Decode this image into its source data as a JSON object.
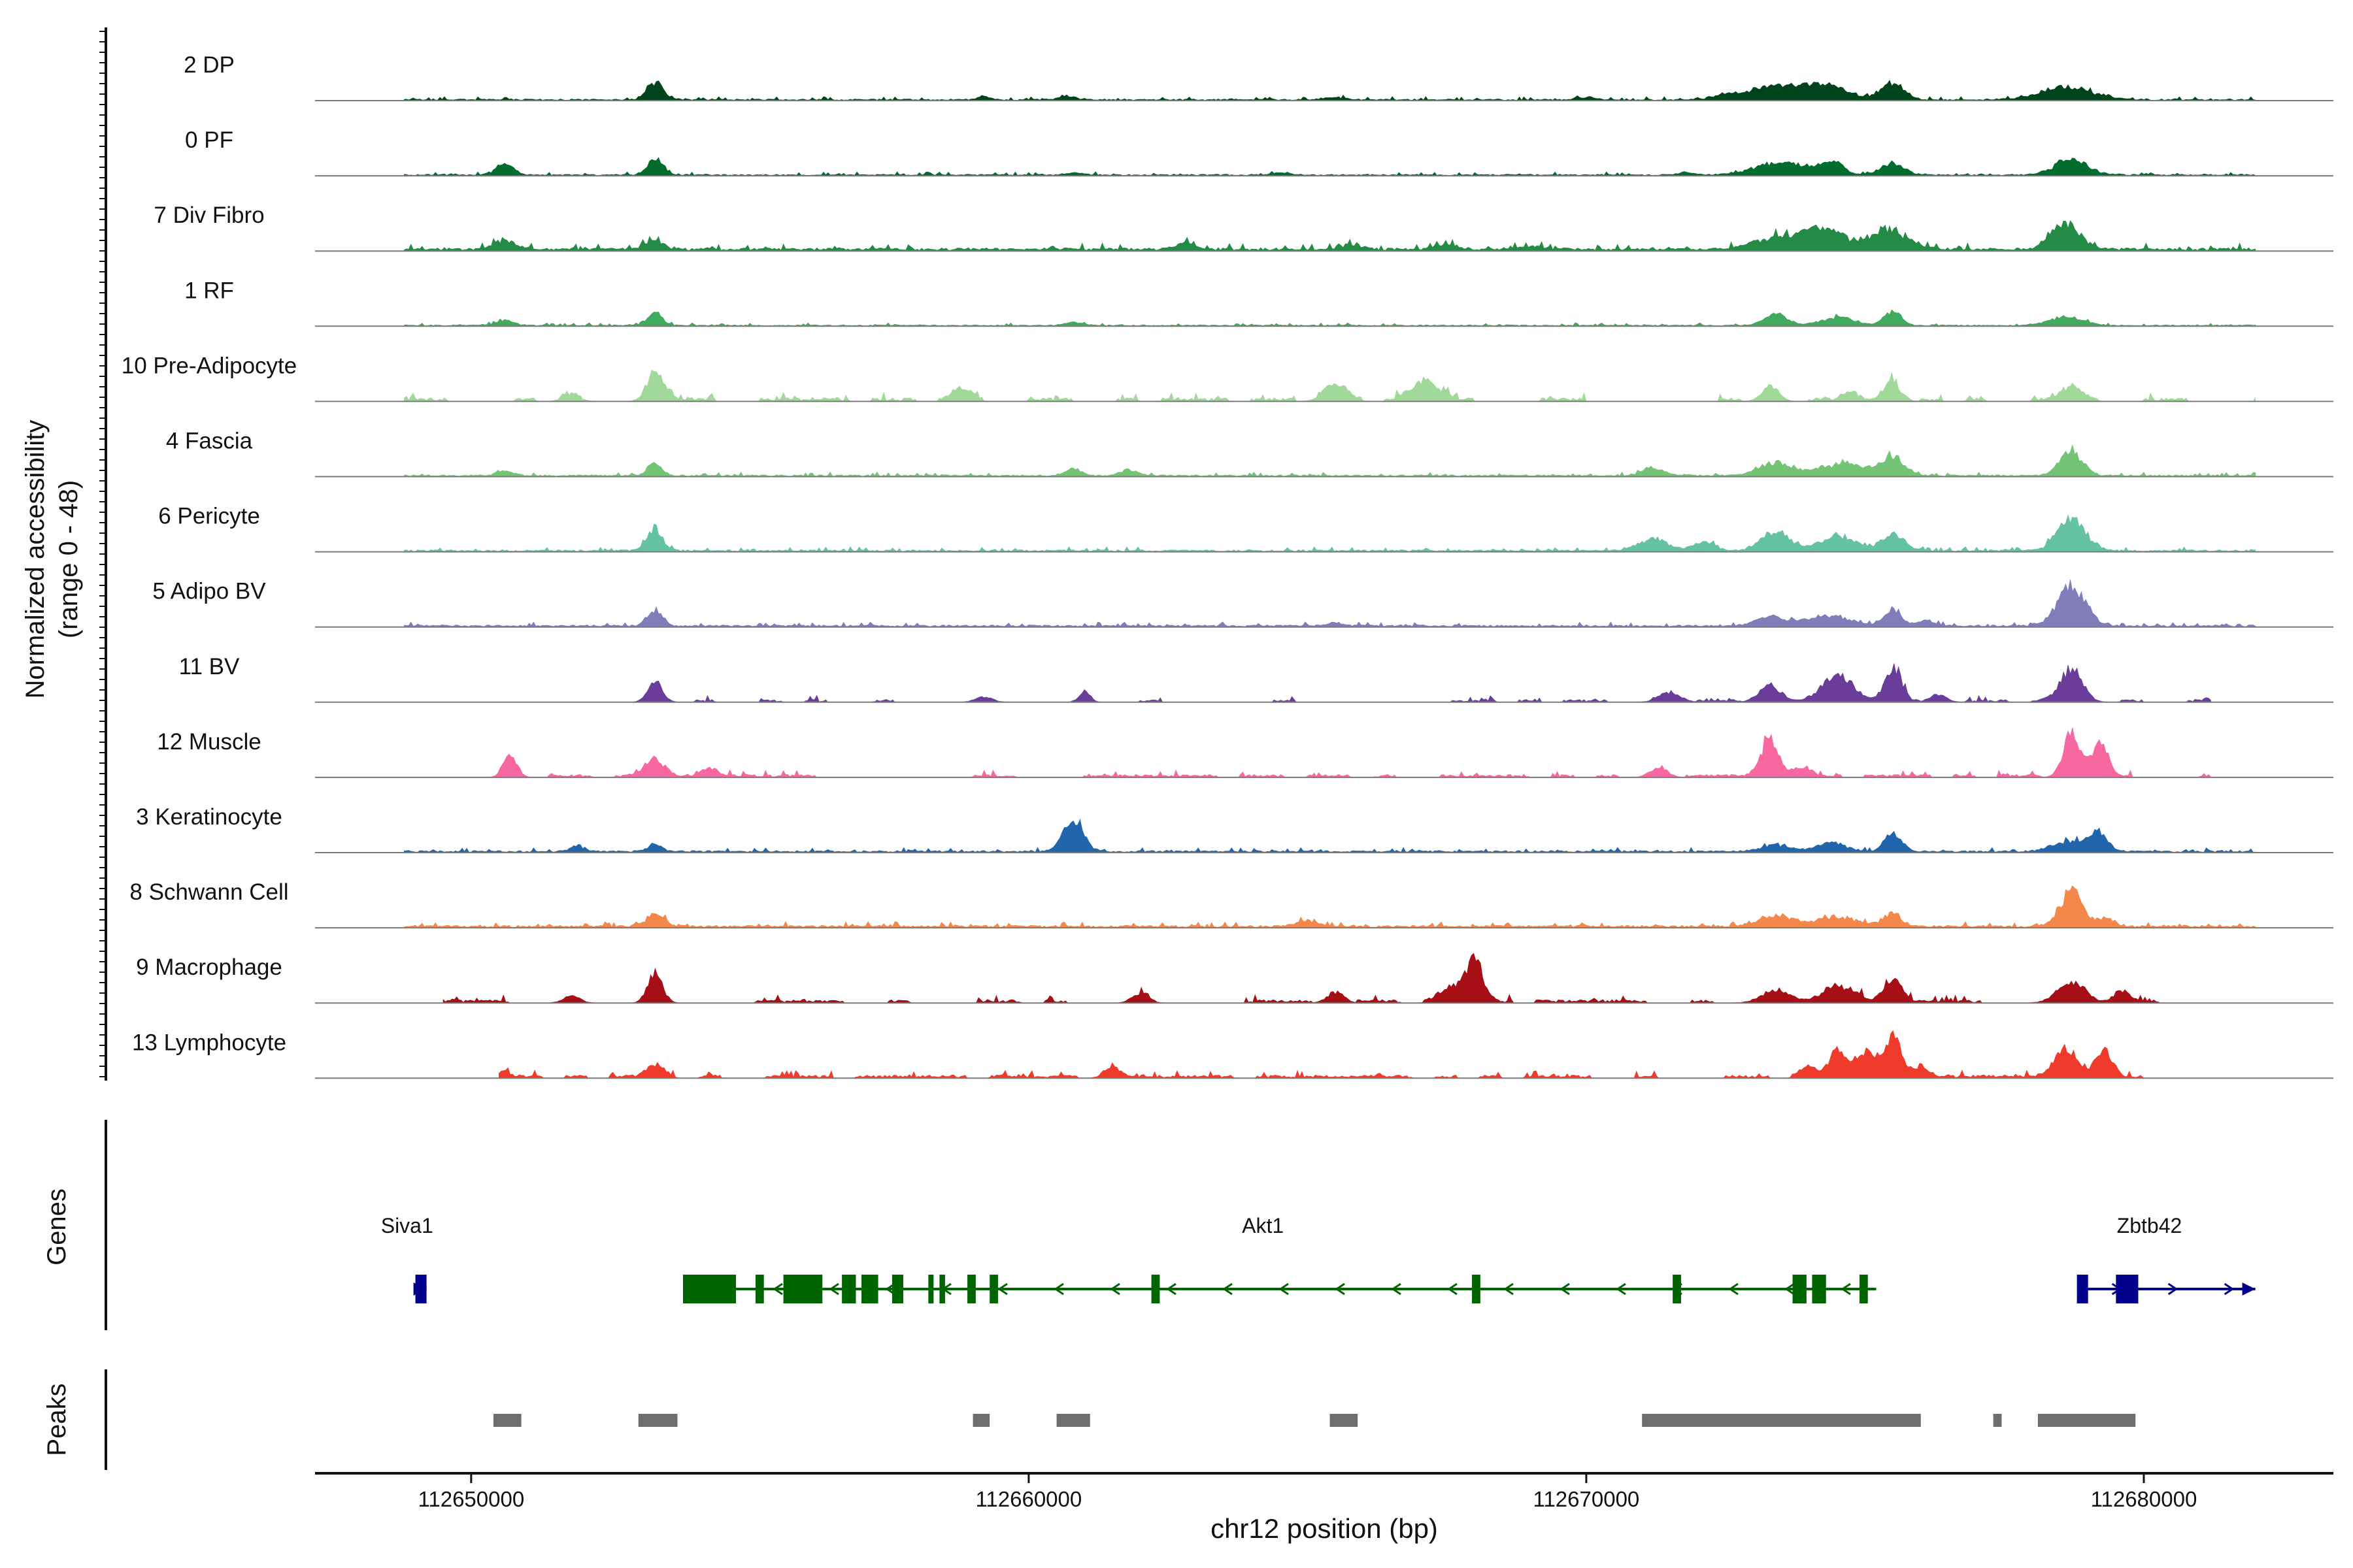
{
  "chart_data": {
    "type": "area",
    "title": "",
    "ylabel_line1": "Normalized accessibility",
    "ylabel_line2": "(range 0 - 48)",
    "ylim": [
      0,
      48
    ],
    "xlabel": "chr12 position (bp)",
    "xlim": [
      112647200,
      112683400
    ],
    "data_start": 112648800,
    "data_end": 112682000,
    "xticks": [
      112650000,
      112660000,
      112670000,
      112680000
    ],
    "xtick_labels": [
      "112650000",
      "112660000",
      "112670000",
      "112680000"
    ],
    "tracks": [
      {
        "name": "2 DP",
        "color": "#00441b",
        "noise": 0.7,
        "peaks": [
          [
            112653300,
            16,
            150
          ],
          [
            112673400,
            12,
            500
          ],
          [
            112674300,
            12,
            400
          ],
          [
            112675500,
            15,
            200
          ],
          [
            112678600,
            12,
            450
          ],
          [
            112659200,
            3,
            120
          ],
          [
            112660700,
            3,
            150
          ],
          [
            112670000,
            2.5,
            150
          ],
          [
            112672500,
            3,
            200
          ],
          [
            112665500,
            2,
            200
          ]
        ]
      },
      {
        "name": "0 PF",
        "color": "#006d2c",
        "noise": 0.7,
        "peaks": [
          [
            112650600,
            11,
            150
          ],
          [
            112653300,
            16,
            130
          ],
          [
            112673500,
            11,
            450
          ],
          [
            112674400,
            12,
            200
          ],
          [
            112675500,
            11,
            200
          ],
          [
            112678700,
            14,
            300
          ],
          [
            112660800,
            2,
            150
          ],
          [
            112664500,
            2,
            150
          ],
          [
            112671800,
            2,
            150
          ]
        ]
      },
      {
        "name": "7 Div Fibro",
        "color": "#238b45",
        "noise": 1.4,
        "peaks": [
          [
            112650600,
            8,
            200
          ],
          [
            112653300,
            9,
            150
          ],
          [
            112673500,
            12,
            450
          ],
          [
            112674300,
            18,
            300
          ],
          [
            112675400,
            18,
            350
          ],
          [
            112678600,
            24,
            250
          ],
          [
            112662800,
            6,
            150
          ],
          [
            112665800,
            5,
            150
          ],
          [
            112667500,
            4,
            200
          ],
          [
            112669000,
            3,
            200
          ]
        ]
      },
      {
        "name": "1 RF",
        "color": "#41ab5d",
        "noise": 0.6,
        "peaks": [
          [
            112650600,
            5,
            150
          ],
          [
            112653300,
            14,
            120
          ],
          [
            112673400,
            10,
            200
          ],
          [
            112674500,
            7,
            300
          ],
          [
            112675500,
            13,
            150
          ],
          [
            112678600,
            8,
            300
          ],
          [
            112660800,
            3,
            150
          ]
        ]
      },
      {
        "name": "10 Pre-Adipocyte",
        "color": "#a1d99b",
        "noise": 1.6,
        "sparse": 0.55,
        "peaks": [
          [
            112653300,
            26,
            150
          ],
          [
            112658800,
            12,
            150
          ],
          [
            112665500,
            15,
            200
          ],
          [
            112667100,
            17,
            250
          ],
          [
            112673300,
            14,
            150
          ],
          [
            112675500,
            16,
            150
          ],
          [
            112678700,
            12,
            200
          ],
          [
            112674700,
            9,
            150
          ],
          [
            112651800,
            6,
            150
          ]
        ]
      },
      {
        "name": "4 Fascia",
        "color": "#74c476",
        "noise": 0.8,
        "peaks": [
          [
            112653300,
            12,
            120
          ],
          [
            112673400,
            12,
            300
          ],
          [
            112674600,
            11,
            400
          ],
          [
            112675500,
            17,
            200
          ],
          [
            112678700,
            22,
            200
          ],
          [
            112660800,
            6,
            150
          ],
          [
            112661800,
            5,
            150
          ],
          [
            112671200,
            7,
            200
          ],
          [
            112650600,
            4,
            150
          ]
        ]
      },
      {
        "name": "6 Pericyte",
        "color": "#66c2a4",
        "noise": 0.9,
        "peaks": [
          [
            112653300,
            20,
            140
          ],
          [
            112673400,
            18,
            250
          ],
          [
            112674500,
            14,
            300
          ],
          [
            112675500,
            15,
            200
          ],
          [
            112678700,
            28,
            250
          ],
          [
            112671200,
            11,
            250
          ],
          [
            112672100,
            8,
            200
          ]
        ]
      },
      {
        "name": "5 Adipo BV",
        "color": "#807dba",
        "noise": 0.9,
        "peaks": [
          [
            112653300,
            15,
            130
          ],
          [
            112673300,
            8,
            250
          ],
          [
            112674300,
            10,
            400
          ],
          [
            112675500,
            16,
            150
          ],
          [
            112678700,
            36,
            250
          ],
          [
            112676100,
            5,
            150
          ],
          [
            112665500,
            3,
            150
          ]
        ]
      },
      {
        "name": "11 BV",
        "color": "#6a3d9a",
        "noise": 1.2,
        "sparse": 0.6,
        "x0": 112652000,
        "x1": 112681200,
        "peaks": [
          [
            112653300,
            20,
            130
          ],
          [
            112673300,
            15,
            200
          ],
          [
            112674500,
            22,
            300
          ],
          [
            112675500,
            32,
            150
          ],
          [
            112678700,
            30,
            200
          ],
          [
            112661000,
            10,
            100
          ],
          [
            112659200,
            5,
            150
          ],
          [
            112671500,
            8,
            200
          ],
          [
            112676300,
            7,
            150
          ]
        ]
      },
      {
        "name": "12 Muscle",
        "color": "#f768a1",
        "noise": 1.3,
        "sparse": 0.4,
        "x0": 112650200,
        "x1": 112681200,
        "peaks": [
          [
            112650700,
            22,
            120
          ],
          [
            112653300,
            15,
            200
          ],
          [
            112673300,
            35,
            150
          ],
          [
            112673900,
            10,
            150
          ],
          [
            112678700,
            40,
            150
          ],
          [
            112679200,
            28,
            150
          ],
          [
            112654300,
            8,
            150
          ],
          [
            112671300,
            10,
            150
          ]
        ]
      },
      {
        "name": "3 Keratinocyte",
        "color": "#2166ac",
        "noise": 0.9,
        "peaks": [
          [
            112660800,
            30,
            180
          ],
          [
            112653300,
            8,
            120
          ],
          [
            112651900,
            5,
            120
          ],
          [
            112673400,
            6,
            250
          ],
          [
            112674400,
            8,
            250
          ],
          [
            112675500,
            16,
            150
          ],
          [
            112678700,
            10,
            300
          ],
          [
            112679200,
            16,
            150
          ]
        ]
      },
      {
        "name": "8 Schwann Cell",
        "color": "#f4874a",
        "noise": 1.1,
        "peaks": [
          [
            112653300,
            12,
            150
          ],
          [
            112673400,
            10,
            300
          ],
          [
            112674500,
            8,
            400
          ],
          [
            112675500,
            12,
            150
          ],
          [
            112678700,
            32,
            200
          ],
          [
            112679300,
            8,
            150
          ],
          [
            112665000,
            5,
            200
          ]
        ]
      },
      {
        "name": "9 Macrophage",
        "color": "#a50f15",
        "noise": 1.5,
        "sparse": 0.55,
        "x0": 112649500,
        "x1": 112681200,
        "peaks": [
          [
            112653300,
            28,
            130
          ],
          [
            112668000,
            40,
            150
          ],
          [
            112667600,
            15,
            200
          ],
          [
            112675500,
            22,
            150
          ],
          [
            112674500,
            14,
            300
          ],
          [
            112673400,
            12,
            250
          ],
          [
            112678700,
            18,
            250
          ],
          [
            112679600,
            10,
            150
          ],
          [
            112662000,
            8,
            150
          ],
          [
            112665500,
            10,
            150
          ],
          [
            112651800,
            6,
            150
          ]
        ]
      },
      {
        "name": "13 Lymphocyte",
        "color": "#ef3b2c",
        "noise": 1.4,
        "sparse": 0.35,
        "x0": 112650500,
        "x1": 112680000,
        "peaks": [
          [
            112653300,
            12,
            150
          ],
          [
            112674500,
            25,
            150
          ],
          [
            112675000,
            22,
            200
          ],
          [
            112675500,
            35,
            150
          ],
          [
            112678600,
            28,
            200
          ],
          [
            112679300,
            25,
            150
          ],
          [
            112674000,
            10,
            150
          ],
          [
            112676000,
            8,
            150
          ],
          [
            112661500,
            8,
            150
          ],
          [
            112650600,
            5,
            100
          ]
        ]
      }
    ],
    "genes_label": "Genes",
    "genes": [
      {
        "name": "Siva1",
        "color": "#00008b",
        "strand": "+",
        "start": 112649000,
        "end": 112649200,
        "label_pos": 112648850,
        "exons": [
          [
            112649000,
            112649200
          ]
        ]
      },
      {
        "name": "Akt1",
        "color": "#006400",
        "strand": "-",
        "start": 112653800,
        "end": 112675200,
        "label_pos": 112664200,
        "exons": [
          [
            112653800,
            112654750
          ],
          [
            112655100,
            112655250
          ],
          [
            112655600,
            112656300
          ],
          [
            112656650,
            112656900
          ],
          [
            112657000,
            112657300
          ],
          [
            112657550,
            112657750
          ],
          [
            112658200,
            112658250
          ],
          [
            112658400,
            112658500
          ],
          [
            112658900,
            112659050
          ],
          [
            112659300,
            112659450
          ],
          [
            112662200,
            112662350
          ],
          [
            112667950,
            112668100
          ],
          [
            112671550,
            112671700
          ],
          [
            112673700,
            112673950
          ],
          [
            112674050,
            112674300
          ],
          [
            112674900,
            112675050
          ]
        ]
      },
      {
        "name": "Zbtb42",
        "color": "#00008b",
        "strand": "+",
        "start": 112678800,
        "end": 112682000,
        "label_pos": 112680100,
        "exons": [
          [
            112678800,
            112679000
          ],
          [
            112679500,
            112679900
          ]
        ]
      }
    ],
    "peaks_label": "Peaks",
    "peak_regions": [
      [
        112650400,
        112650900
      ],
      [
        112653000,
        112653700
      ],
      [
        112659000,
        112659300
      ],
      [
        112660500,
        112661100
      ],
      [
        112665400,
        112665900
      ],
      [
        112671000,
        112676000
      ],
      [
        112677300,
        112677450
      ],
      [
        112678100,
        112679850
      ]
    ]
  }
}
